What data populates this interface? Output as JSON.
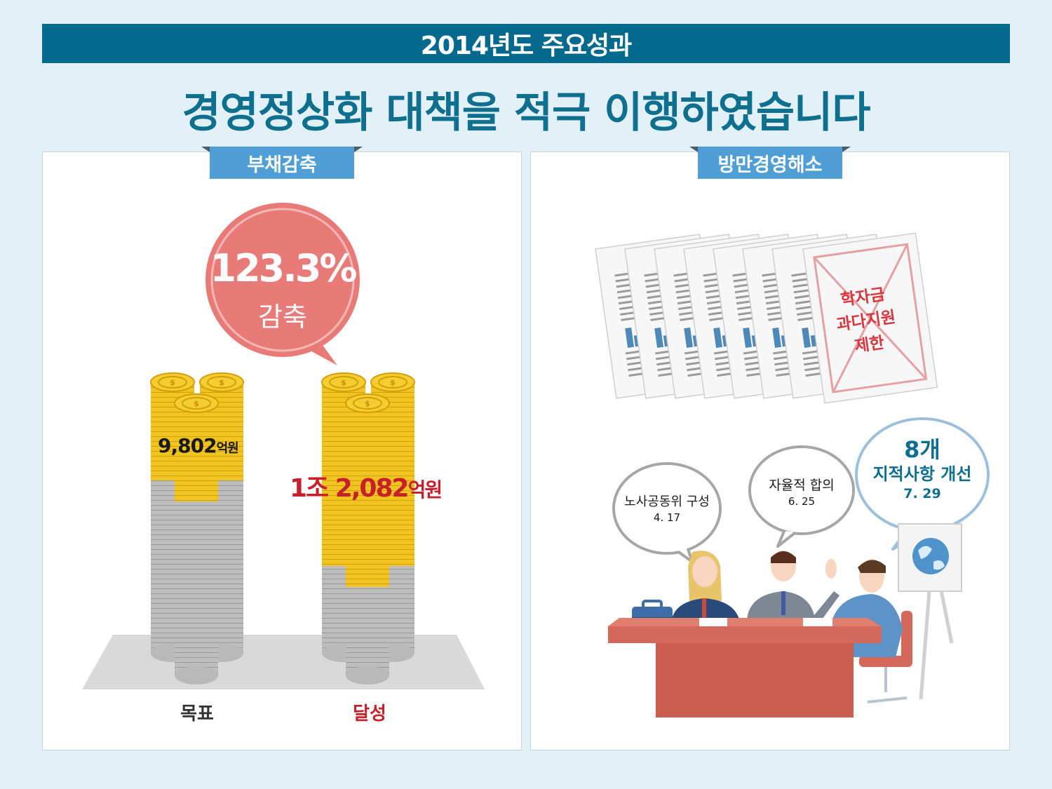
{
  "header": {
    "title": "2014년도 주요성과"
  },
  "headline": "경영정상화 대책을 적극 이행하였습니다",
  "left_panel": {
    "tab": "부채감축",
    "bubble": {
      "value": "123.3%",
      "label": "감축"
    },
    "target": {
      "amount_num": "9,802",
      "amount_unit": "억원",
      "label": "목표"
    },
    "achieved": {
      "amount_num": "1조 2,082",
      "amount_unit": "억원",
      "label": "달성"
    }
  },
  "right_panel": {
    "tab": "방만경영해소",
    "stamp_lines": [
      "학자금",
      "과다지원",
      "제한"
    ],
    "bubbles": [
      {
        "title": "노사공동위 구성",
        "date": "4. 17"
      },
      {
        "title": "자율적 합의",
        "date": "6. 25"
      },
      {
        "count": "8개",
        "title": "지적사항 개선",
        "date": "7. 29"
      }
    ]
  },
  "colors": {
    "header_bg": "#036a8e",
    "headline": "#0f6f8f",
    "tab_bg": "#4f9fd6",
    "accent_red": "#c8202a",
    "bubble_pink": "#e87b78",
    "coin_gold": "#f2c420",
    "coin_gray": "#b9b9b9"
  }
}
